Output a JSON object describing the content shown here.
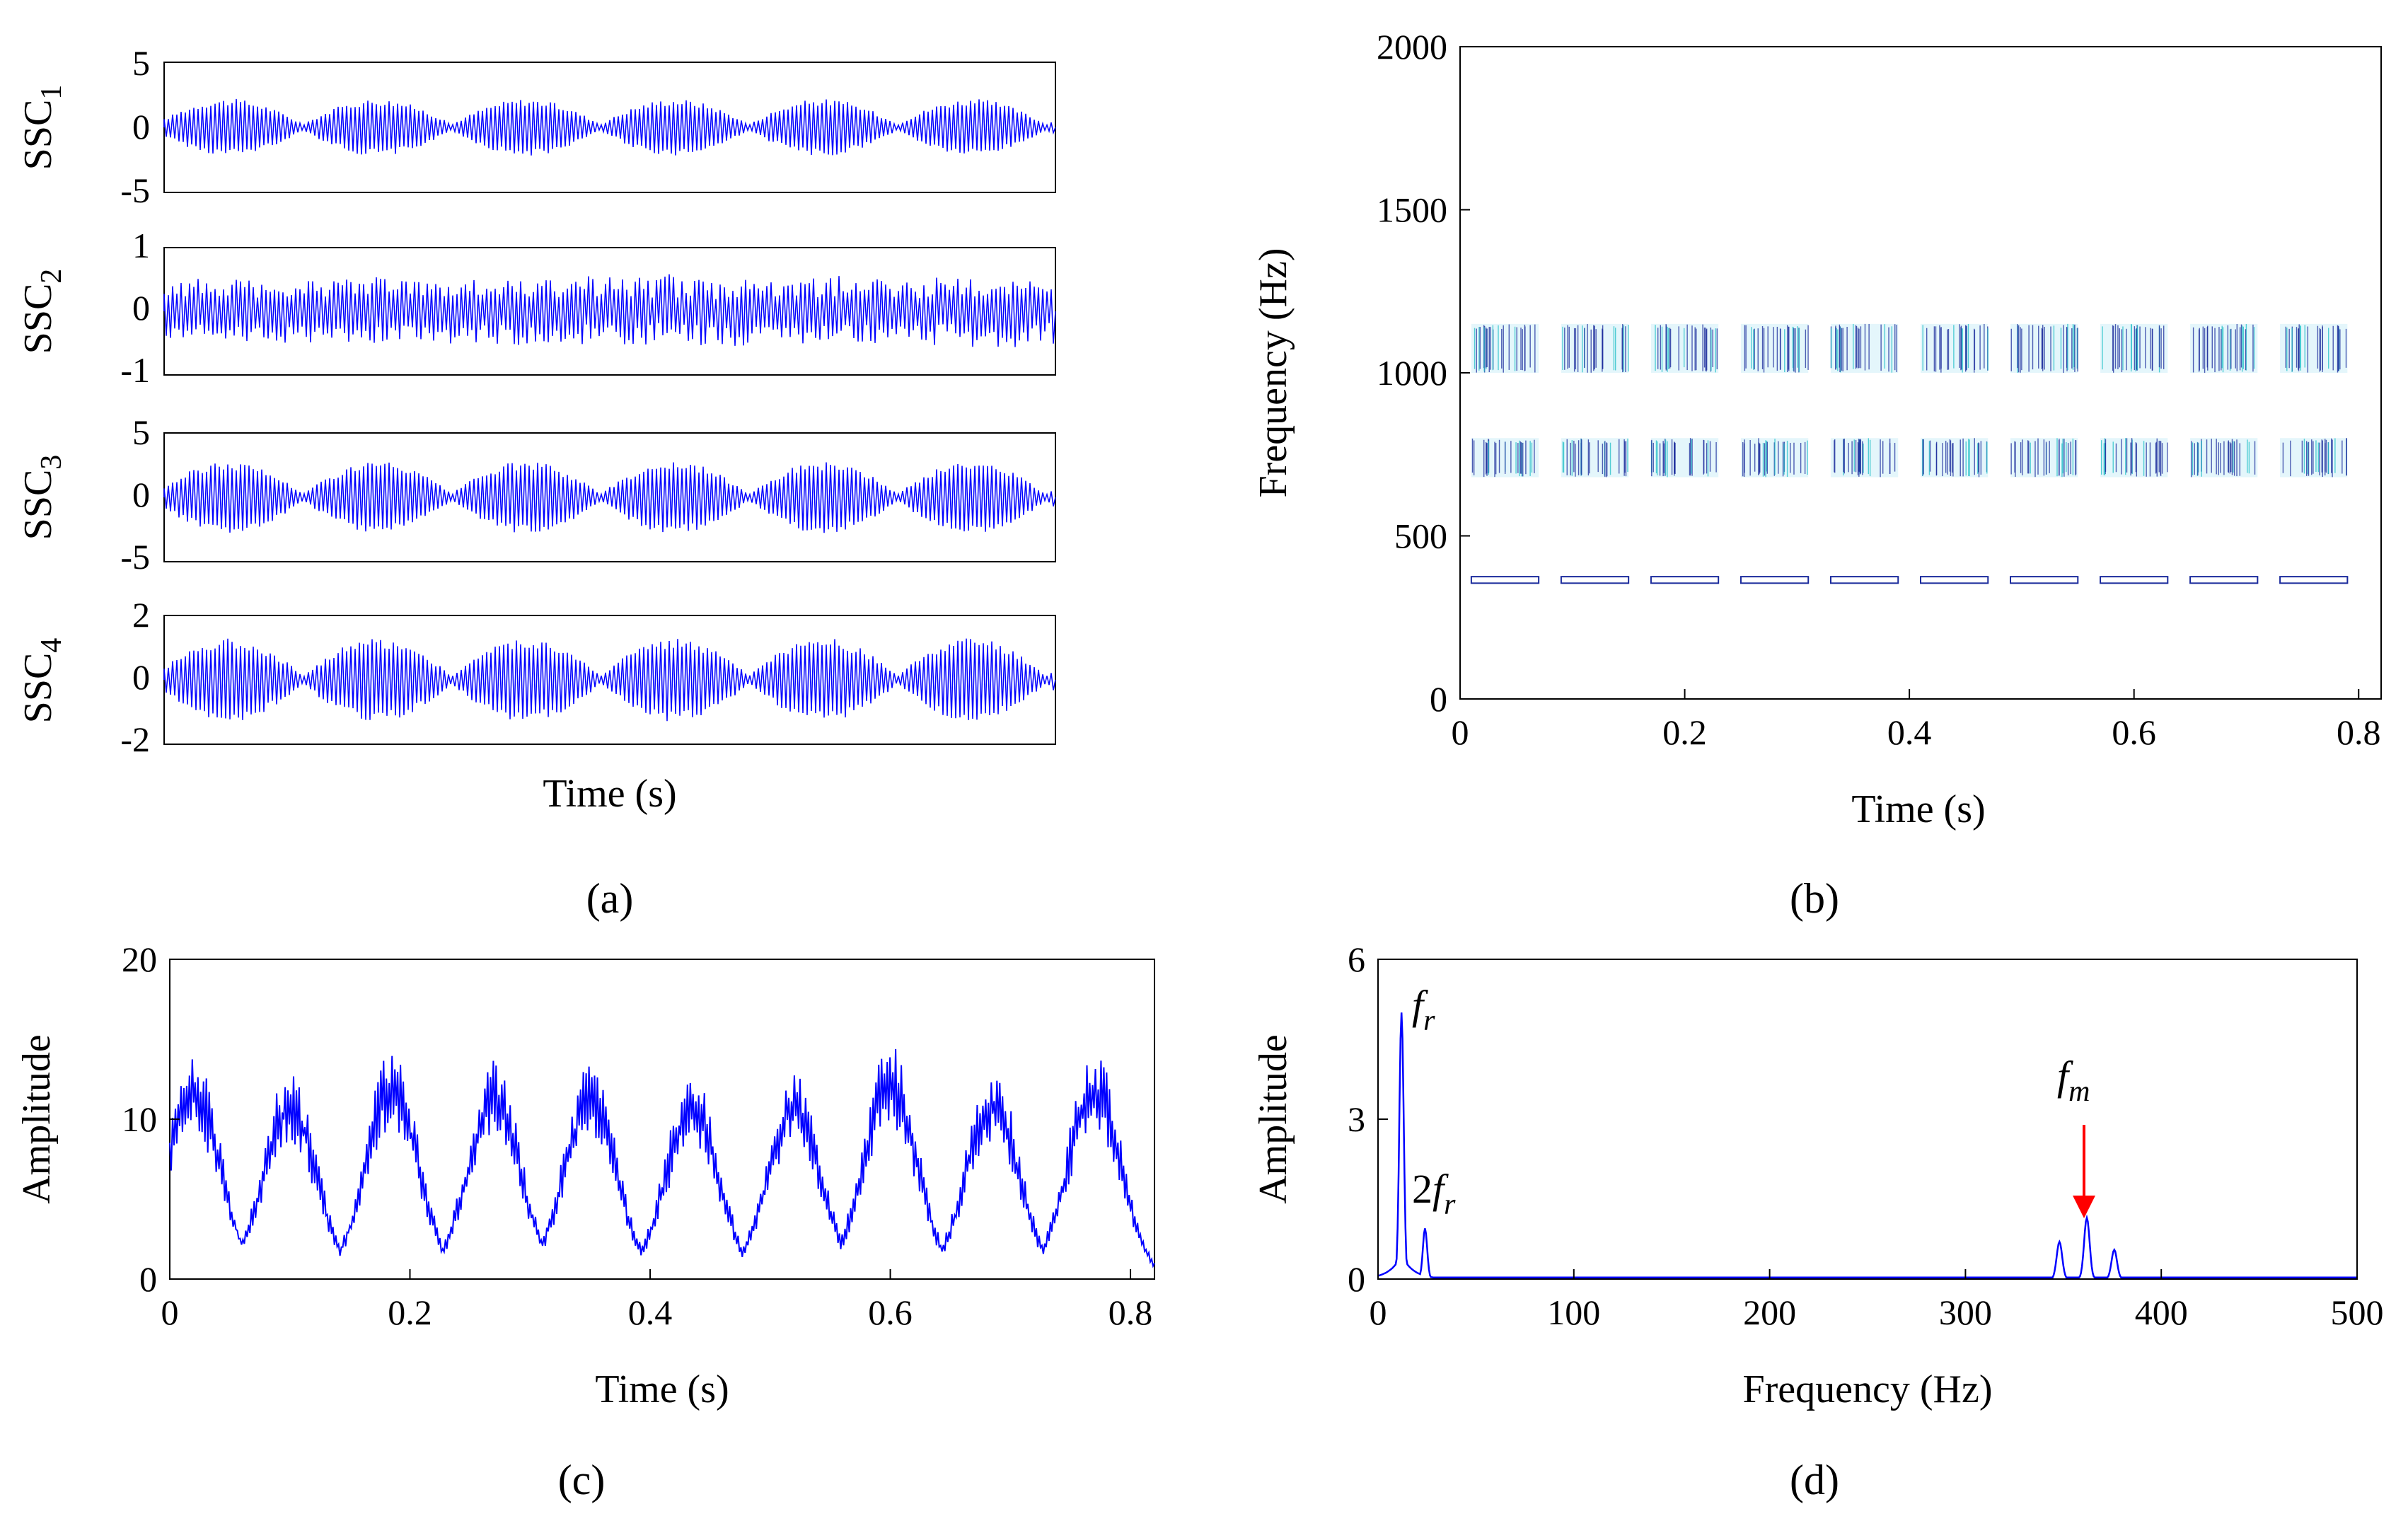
{
  "chart_data": [
    {
      "type": "line",
      "panel": "a",
      "panel_label": "(a)",
      "xlabel": "Time (s)",
      "subplots": [
        {
          "ylabel_base": "SSC",
          "ylabel_sub": "1",
          "yticks": [
            "5",
            "0",
            "-5"
          ],
          "ylim": [
            -5,
            5
          ],
          "amplitude": 2.2,
          "pattern": "modulated"
        },
        {
          "ylabel_base": "SSC",
          "ylabel_sub": "2",
          "yticks": [
            "1",
            "0",
            "-1"
          ],
          "ylim": [
            -1,
            1
          ],
          "amplitude": 0.6,
          "pattern": "noise"
        },
        {
          "ylabel_base": "SSC",
          "ylabel_sub": "3",
          "yticks": [
            "5",
            "0",
            "-5"
          ],
          "ylim": [
            -5,
            5
          ],
          "amplitude": 2.8,
          "pattern": "modulated"
        },
        {
          "ylabel_base": "SSC",
          "ylabel_sub": "4",
          "yticks": [
            "2",
            "0",
            "-2"
          ],
          "ylim": [
            -2,
            2
          ],
          "amplitude": 1.3,
          "pattern": "modulated"
        }
      ]
    },
    {
      "type": "heatmap",
      "panel": "b",
      "panel_label": "(b)",
      "xlabel": "Time (s)",
      "ylabel": "Frequency (Hz)",
      "xlim": [
        0,
        0.82
      ],
      "ylim": [
        0,
        2000
      ],
      "xticks": [
        "0",
        "0.2",
        "0.4",
        "0.6",
        "0.8"
      ],
      "yticks": [
        "2000",
        "1500",
        "1000",
        "500",
        "0"
      ],
      "bursts_t": [
        0.01,
        0.09,
        0.17,
        0.25,
        0.33,
        0.41,
        0.49,
        0.57,
        0.65,
        0.73
      ],
      "burst_width": 0.06,
      "bands": [
        {
          "f_low": 1000,
          "f_high": 1150
        },
        {
          "f_low": 680,
          "f_high": 800
        },
        {
          "f_low": 355,
          "f_high": 375
        }
      ]
    },
    {
      "type": "line",
      "panel": "c",
      "panel_label": "(c)",
      "xlabel": "Time (s)",
      "ylabel": "Amplitude",
      "xlim": [
        0,
        0.82
      ],
      "ylim": [
        0,
        20
      ],
      "xticks": [
        "0",
        "0.2",
        "0.4",
        "0.6",
        "0.8"
      ],
      "yticks": [
        "20",
        "10",
        "0"
      ],
      "peaks_t": [
        0.02,
        0.1,
        0.185,
        0.27,
        0.35,
        0.435,
        0.52,
        0.6,
        0.685,
        0.77
      ],
      "peak_values": [
        14.2,
        13.2,
        14.5,
        13.8,
        13.5,
        13.0,
        13.2,
        15.0,
        13.5,
        14.5
      ]
    },
    {
      "type": "line",
      "panel": "d",
      "panel_label": "(d)",
      "xlabel": "Frequency (Hz)",
      "ylabel": "Amplitude",
      "xlim": [
        0,
        500
      ],
      "ylim": [
        0,
        6
      ],
      "xticks": [
        "0",
        "100",
        "200",
        "300",
        "400",
        "500"
      ],
      "yticks": [
        "6",
        "3",
        "0"
      ],
      "peaks": [
        {
          "f": 12,
          "a": 5.0
        },
        {
          "f": 24,
          "a": 0.95
        },
        {
          "f": 348,
          "a": 0.7
        },
        {
          "f": 362,
          "a": 1.15
        },
        {
          "f": 376,
          "a": 0.55
        }
      ],
      "annotations": {
        "fr_base": "f",
        "fr_sub": "r",
        "fr2_pre": "2",
        "fr2_base": "f",
        "fr2_sub": "r",
        "fm_base": "f",
        "fm_sub": "m"
      },
      "arrow_color": "#ff0000"
    }
  ],
  "colors": {
    "line": "#0000ff",
    "axis": "#000000"
  }
}
